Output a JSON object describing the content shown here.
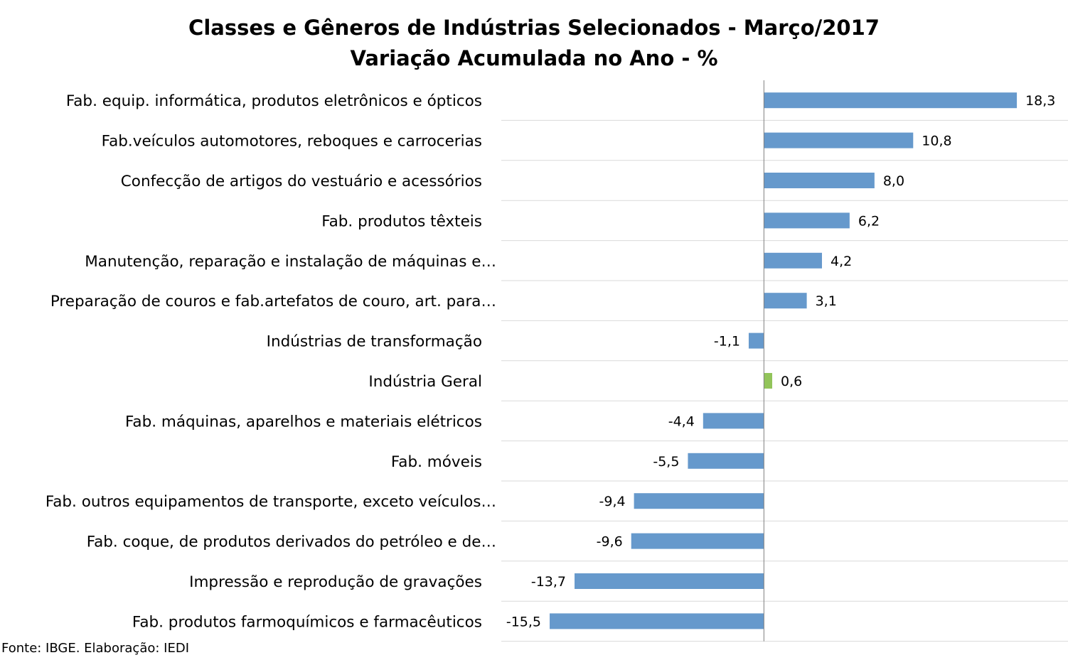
{
  "chart_data": {
    "type": "bar",
    "orientation": "horizontal",
    "title": "Classes e Gêneros de Indústrias Selecionados - Março/2017",
    "subtitle": "Variação Acumulada no Ano - %",
    "categories": [
      "Fab. equip. informática, produtos eletrônicos e ópticos",
      "Fab.veículos automotores, reboques e carrocerias",
      "Confecção de artigos do vestuário e acessórios",
      "Fab. produtos têxteis",
      "Manutenção, reparação e instalação de máquinas e…",
      "Preparação de couros e fab.artefatos de couro, art. para…",
      "Indústrias de transformação",
      "Indústria Geral",
      "Fab. máquinas, aparelhos e materiais elétricos",
      "Fab. móveis",
      "Fab. outros equipamentos de transporte, exceto veículos…",
      "Fab. coque, de produtos derivados do petróleo e de…",
      "Impressão e reprodução de gravações",
      "Fab. produtos farmoquímicos e farmacêuticos"
    ],
    "values": [
      18.3,
      10.8,
      8.0,
      6.2,
      4.2,
      3.1,
      -1.1,
      0.6,
      -4.4,
      -5.5,
      -9.4,
      -9.6,
      -13.7,
      -15.5
    ],
    "value_labels": [
      "18,3",
      "10,8",
      "8,0",
      "6,2",
      "4,2",
      "3,1",
      "-1,1",
      "0,6",
      "-4,4",
      "-5,5",
      "-9,4",
      "-9,6",
      "-13,7",
      "-15,5"
    ],
    "highlight_index": 7,
    "colors": {
      "bar": "#6699cc",
      "highlight": "#92c45a",
      "gridline": "#d9d9d9",
      "axis": "#808080"
    },
    "xlim": [
      -19,
      22
    ],
    "grid": true,
    "legend": "none"
  },
  "source": "Fonte: IBGE. Elaboração: IEDI"
}
